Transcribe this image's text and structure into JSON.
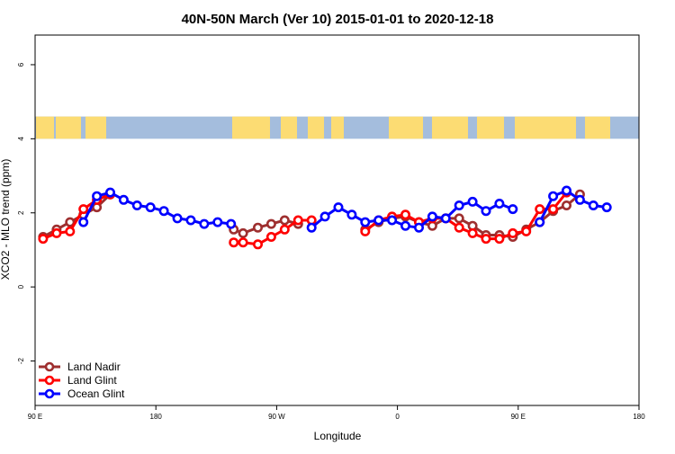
{
  "chart_data": {
    "type": "line",
    "title": "40N-50N March (Ver 10)   2015-01-01 to 2020-12-18",
    "xlabel": "Longitude",
    "ylabel": "XCO2 - MLO trend (ppm)",
    "xlim": [
      90,
      540
    ],
    "ylim": [
      -3.2,
      6.8
    ],
    "x_ticks": [
      {
        "value": 90,
        "label": "90 E"
      },
      {
        "value": 180,
        "label": "180"
      },
      {
        "value": 270,
        "label": "90 W"
      },
      {
        "value": 360,
        "label": "0"
      },
      {
        "value": 450,
        "label": "90 E"
      },
      {
        "value": 540,
        "label": "180"
      }
    ],
    "y_ticks": [
      {
        "value": -2,
        "label": "-2"
      },
      {
        "value": 0,
        "label": "0"
      },
      {
        "value": 2,
        "label": "2"
      },
      {
        "value": 4,
        "label": "4"
      },
      {
        "value": 6,
        "label": "6"
      }
    ],
    "map_band": {
      "ymin": 4.0,
      "ymax": 4.6,
      "ocean_color": "#a4bddd",
      "land_color": "#fcdc73"
    },
    "legend_position": "bottom-left",
    "series": [
      {
        "name": "Land Nadir",
        "color": "#9e2f2f",
        "segments": [
          [
            [
              96,
              1.35
            ],
            [
              106,
              1.55
            ],
            [
              116,
              1.75
            ],
            [
              126,
              1.95
            ],
            [
              136,
              2.15
            ],
            [
              146,
              2.5
            ]
          ],
          [
            [
              238,
              1.55
            ],
            [
              245,
              1.45
            ],
            [
              256,
              1.6
            ],
            [
              266,
              1.7
            ],
            [
              276,
              1.8
            ],
            [
              286,
              1.7
            ]
          ],
          [
            [
              336,
              1.55
            ],
            [
              346,
              1.75
            ],
            [
              356,
              1.85
            ],
            [
              366,
              1.9
            ],
            [
              376,
              1.75
            ],
            [
              386,
              1.65
            ],
            [
              396,
              1.85
            ],
            [
              406,
              1.85
            ],
            [
              416,
              1.65
            ],
            [
              426,
              1.4
            ],
            [
              436,
              1.4
            ],
            [
              446,
              1.35
            ],
            [
              456,
              1.55
            ],
            [
              466,
              1.75
            ],
            [
              476,
              2.05
            ],
            [
              486,
              2.2
            ],
            [
              496,
              2.5
            ]
          ]
        ]
      },
      {
        "name": "Land Glint",
        "color": "#ff0000",
        "segments": [
          [
            [
              96,
              1.3
            ],
            [
              106,
              1.45
            ],
            [
              116,
              1.5
            ],
            [
              126,
              2.1
            ],
            [
              136,
              2.35
            ],
            [
              146,
              2.5
            ]
          ],
          [
            [
              238,
              1.2
            ],
            [
              245,
              1.2
            ],
            [
              256,
              1.15
            ],
            [
              266,
              1.35
            ],
            [
              276,
              1.55
            ],
            [
              286,
              1.8
            ],
            [
              296,
              1.8
            ]
          ],
          [
            [
              336,
              1.5
            ],
            [
              346,
              1.8
            ],
            [
              356,
              1.9
            ],
            [
              366,
              1.95
            ],
            [
              376,
              1.75
            ],
            [
              386,
              1.85
            ],
            [
              396,
              1.85
            ],
            [
              406,
              1.6
            ],
            [
              416,
              1.45
            ],
            [
              426,
              1.3
            ],
            [
              436,
              1.3
            ],
            [
              446,
              1.45
            ],
            [
              456,
              1.5
            ],
            [
              466,
              2.1
            ],
            [
              476,
              2.1
            ],
            [
              486,
              2.55
            ]
          ]
        ]
      },
      {
        "name": "Ocean Glint",
        "color": "#0000ff",
        "segments": [
          [
            [
              126,
              1.75
            ],
            [
              136,
              2.45
            ],
            [
              146,
              2.55
            ],
            [
              156,
              2.35
            ],
            [
              166,
              2.2
            ],
            [
              176,
              2.15
            ],
            [
              186,
              2.05
            ],
            [
              196,
              1.85
            ],
            [
              206,
              1.8
            ],
            [
              216,
              1.7
            ],
            [
              226,
              1.75
            ],
            [
              236,
              1.7
            ]
          ],
          [
            [
              296,
              1.6
            ],
            [
              306,
              1.9
            ],
            [
              316,
              2.15
            ],
            [
              326,
              1.95
            ],
            [
              336,
              1.75
            ],
            [
              346,
              1.8
            ],
            [
              356,
              1.8
            ],
            [
              366,
              1.65
            ],
            [
              376,
              1.6
            ],
            [
              386,
              1.9
            ],
            [
              396,
              1.85
            ],
            [
              406,
              2.2
            ],
            [
              416,
              2.3
            ],
            [
              426,
              2.05
            ],
            [
              436,
              2.25
            ],
            [
              446,
              2.1
            ]
          ],
          [
            [
              466,
              1.75
            ],
            [
              476,
              2.45
            ],
            [
              486,
              2.6
            ],
            [
              496,
              2.35
            ],
            [
              506,
              2.2
            ],
            [
              516,
              2.15
            ]
          ]
        ]
      }
    ]
  }
}
